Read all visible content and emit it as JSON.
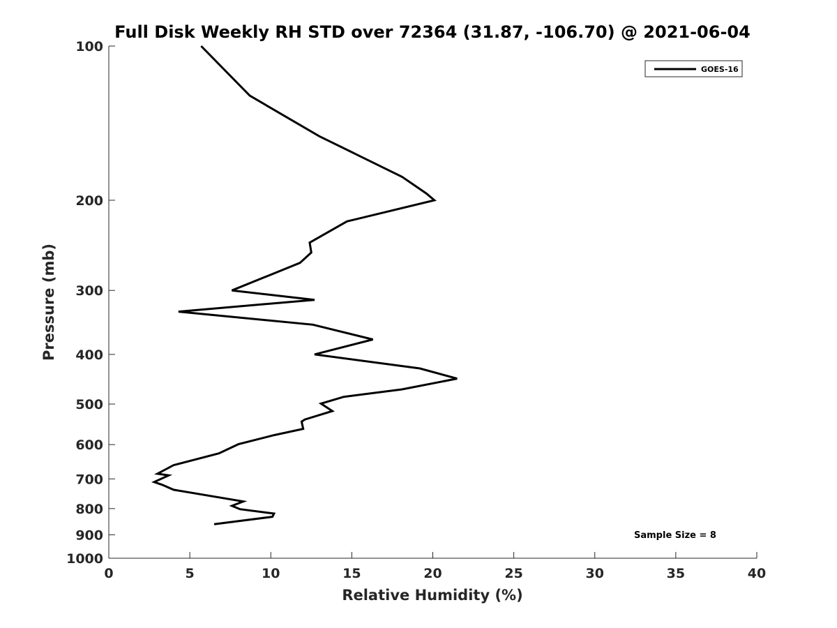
{
  "chart_data": {
    "type": "line",
    "title": "Full Disk Weekly RH STD over 72364 (31.87, -106.70) @ 2021-06-04",
    "xlabel": "Relative Humidity (%)",
    "ylabel": "Pressure (mb)",
    "xlim": [
      0,
      40
    ],
    "ylim": [
      100,
      1000
    ],
    "yscale": "log",
    "y_inverted": true,
    "x_ticks": [
      "0",
      "5",
      "10",
      "15",
      "20",
      "25",
      "30",
      "35",
      "40"
    ],
    "y_ticks": [
      "100",
      "200",
      "300",
      "400",
      "500",
      "600",
      "700",
      "800",
      "900",
      "1000"
    ],
    "grid": false,
    "legend_position": "top-right",
    "annotation": "Sample Size = 8",
    "series": [
      {
        "name": "GOES-16",
        "color": "#000000",
        "points": [
          [
            5.7,
            100
          ],
          [
            8.7,
            125
          ],
          [
            13.0,
            150
          ],
          [
            18.1,
            180
          ],
          [
            19.6,
            194
          ],
          [
            20.1,
            200
          ],
          [
            14.7,
            220
          ],
          [
            12.4,
            242
          ],
          [
            12.5,
            253
          ],
          [
            11.8,
            265
          ],
          [
            7.6,
            300
          ],
          [
            12.7,
            313
          ],
          [
            4.3,
            330
          ],
          [
            12.6,
            350
          ],
          [
            16.3,
            374
          ],
          [
            12.7,
            400
          ],
          [
            19.2,
            426
          ],
          [
            21.5,
            446
          ],
          [
            18.1,
            468
          ],
          [
            14.5,
            484
          ],
          [
            13.1,
            499
          ],
          [
            13.8,
            516
          ],
          [
            12.1,
            536
          ],
          [
            11.9,
            541
          ],
          [
            12.0,
            559
          ],
          [
            10.2,
            575
          ],
          [
            8.0,
            599
          ],
          [
            6.8,
            624
          ],
          [
            4.0,
            658
          ],
          [
            3.0,
            684
          ],
          [
            3.7,
            689
          ],
          [
            2.8,
            710
          ],
          [
            3.3,
            719
          ],
          [
            4.0,
            735
          ],
          [
            8.3,
            775
          ],
          [
            7.6,
            790
          ],
          [
            8.1,
            802
          ],
          [
            10.2,
            818
          ],
          [
            10.1,
            830
          ],
          [
            6.5,
            858
          ]
        ]
      }
    ]
  }
}
